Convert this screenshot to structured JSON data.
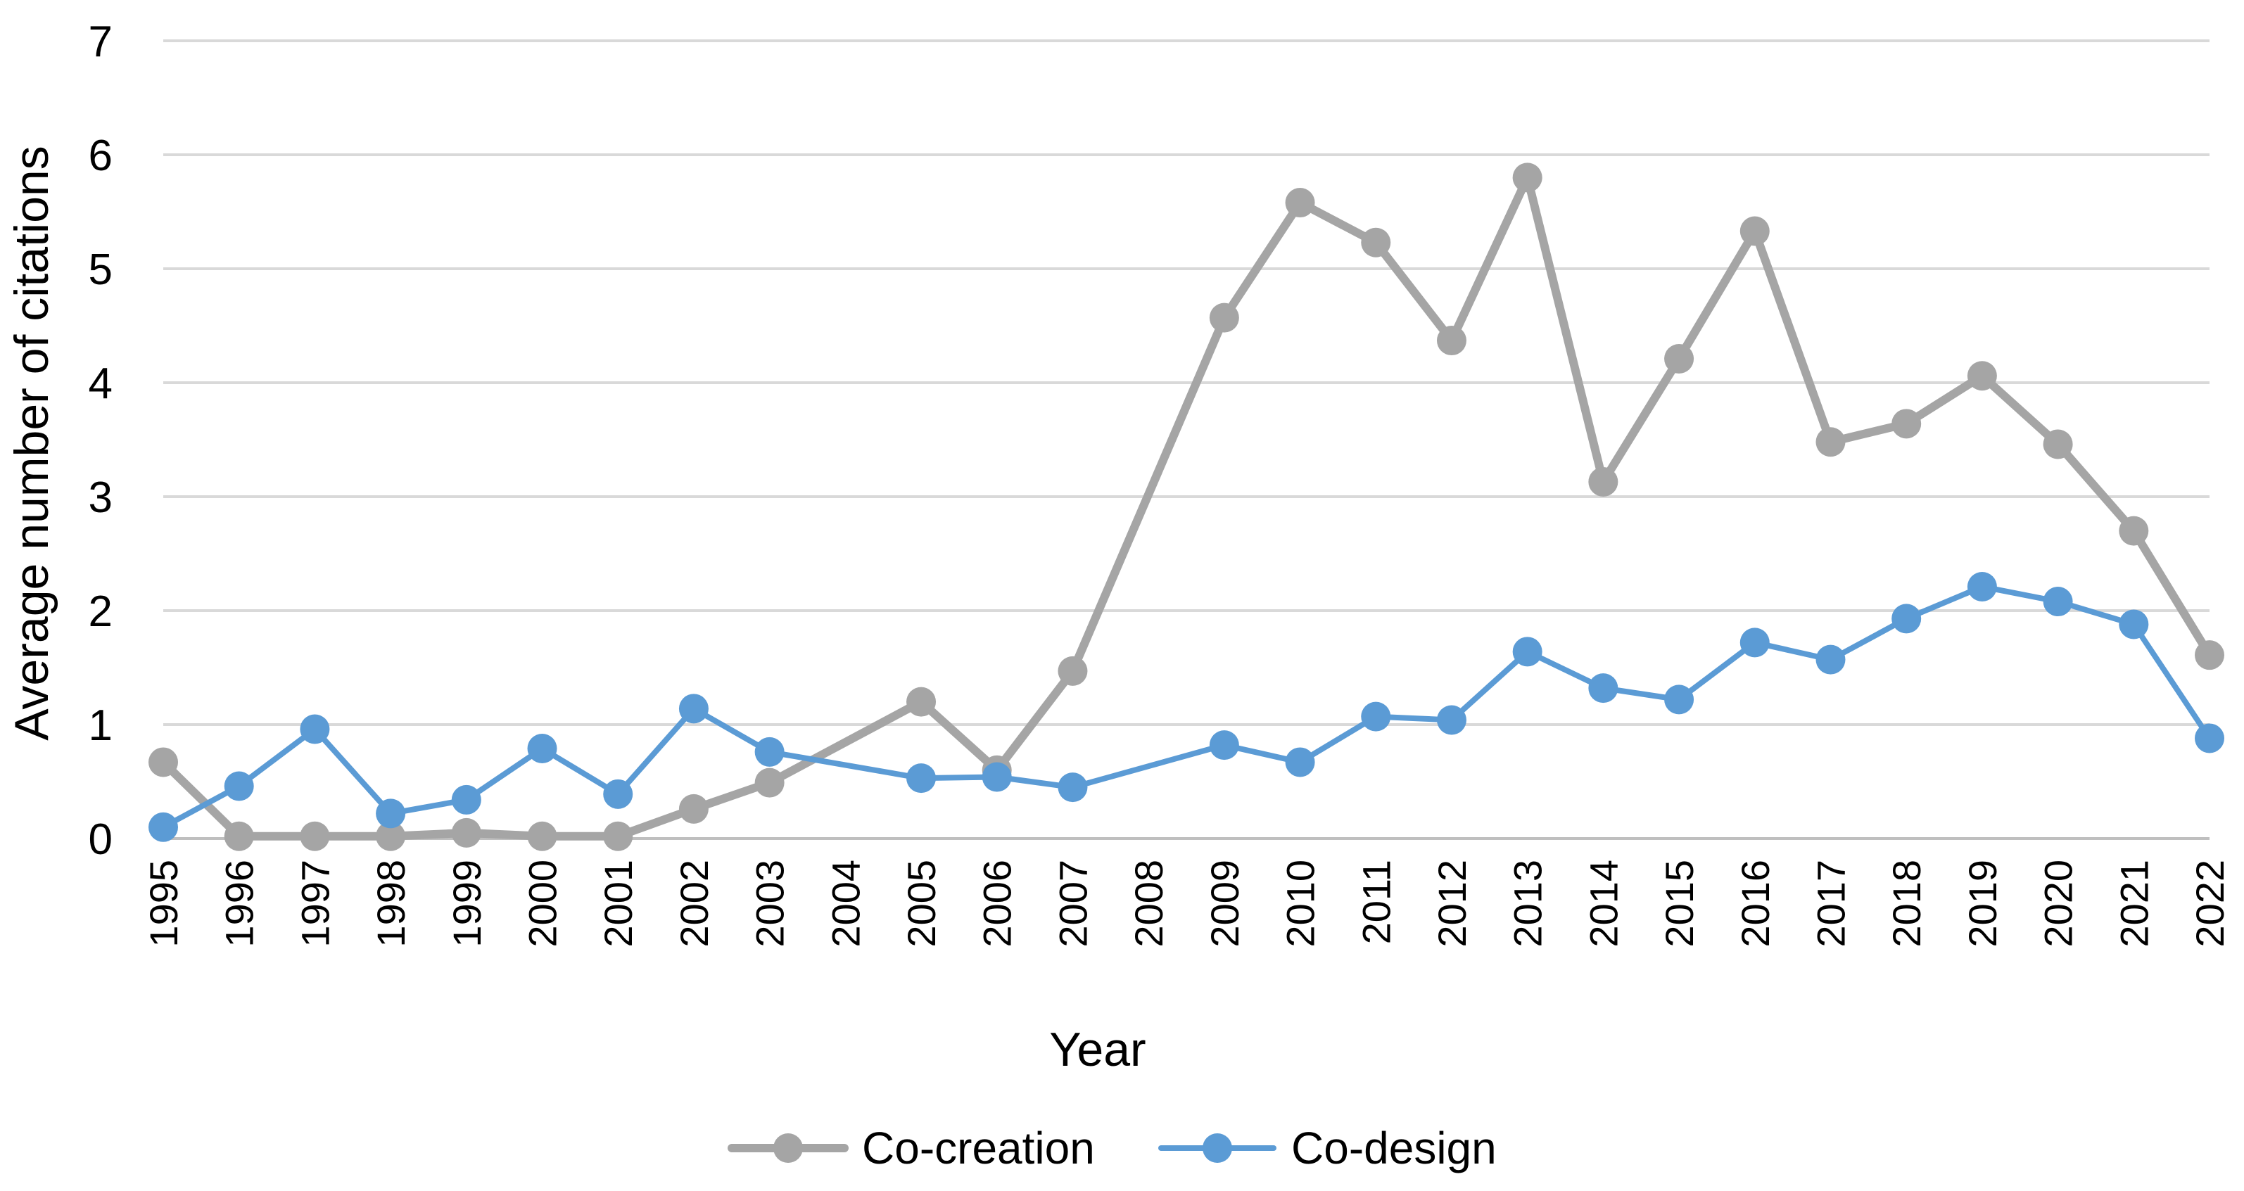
{
  "chart_data": {
    "type": "line",
    "title": "",
    "xlabel": "Year",
    "ylabel": "Average number of citations",
    "ylim": [
      0,
      7
    ],
    "yticks": [
      "0",
      "1",
      "2",
      "3",
      "4",
      "5",
      "6",
      "7"
    ],
    "grid": true,
    "legend_position": "bottom-center",
    "categories": [
      "1995",
      "1996",
      "1997",
      "1998",
      "1999",
      "2000",
      "2001",
      "2002",
      "2003",
      "2004",
      "2005",
      "2006",
      "2007",
      "2008",
      "2009",
      "2010",
      "2011",
      "2012",
      "2013",
      "2014",
      "2015",
      "2016",
      "2017",
      "2018",
      "2019",
      "2020",
      "2021",
      "2022"
    ],
    "series": [
      {
        "name": "Co-creation",
        "color": "#a5a5a5",
        "values": [
          0.67,
          0.02,
          0.02,
          0.02,
          0.05,
          0.02,
          0.02,
          0.26,
          0.49,
          null,
          1.2,
          0.6,
          1.47,
          null,
          4.57,
          5.58,
          5.23,
          4.37,
          5.8,
          3.13,
          4.21,
          5.33,
          3.48,
          3.64,
          4.06,
          3.46,
          2.7,
          1.61
        ]
      },
      {
        "name": "Co-design",
        "color": "#5b9bd5",
        "values": [
          0.1,
          0.46,
          0.96,
          0.22,
          0.34,
          0.79,
          0.39,
          1.14,
          0.76,
          null,
          0.53,
          0.54,
          0.45,
          null,
          0.82,
          0.67,
          1.07,
          1.04,
          1.64,
          1.32,
          1.22,
          1.72,
          1.57,
          1.93,
          2.21,
          2.08,
          1.88,
          0.88
        ]
      }
    ]
  }
}
